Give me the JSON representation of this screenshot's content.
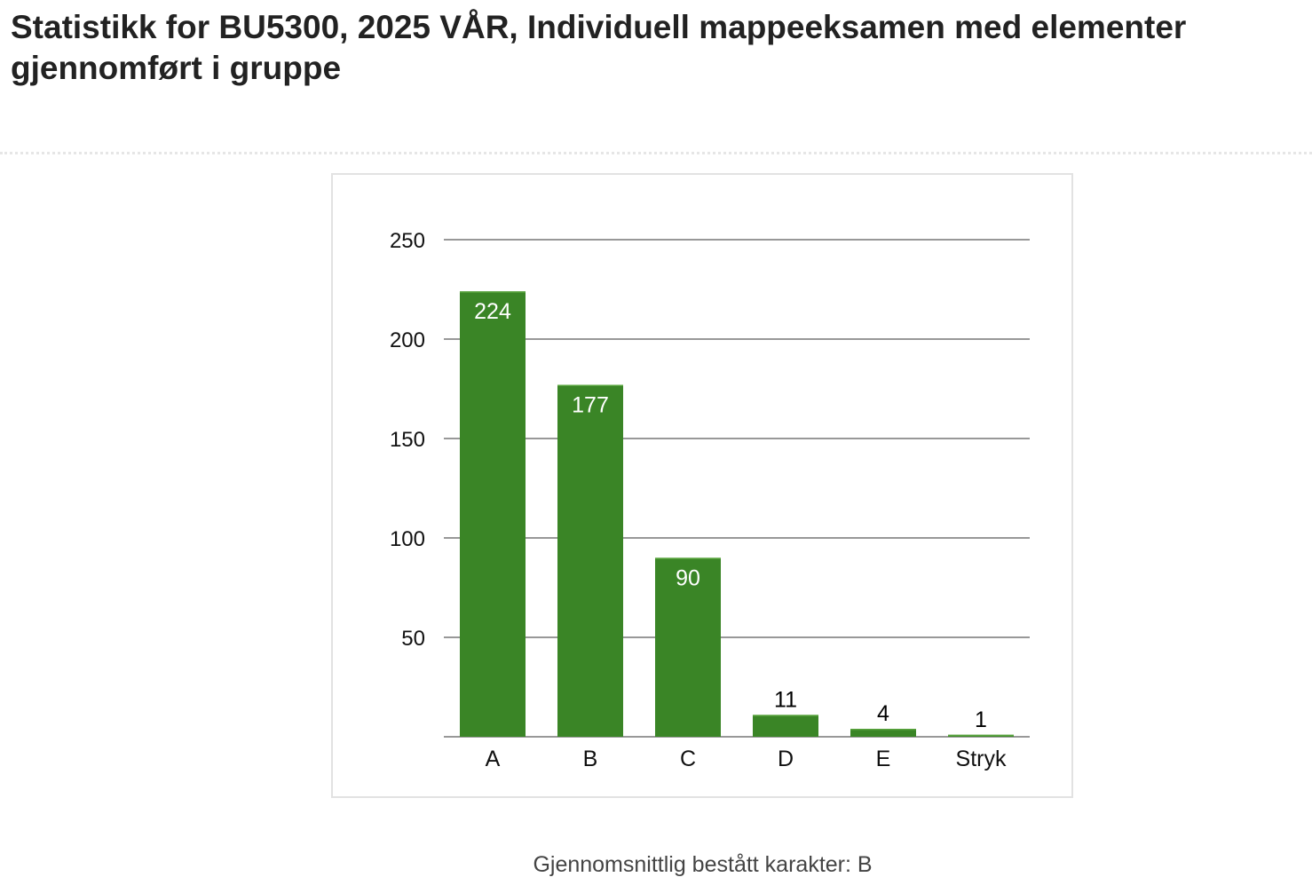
{
  "page": {
    "title": "Statistikk for BU5300, 2025 VÅR, Individuell mappeeksamen med elementer gjennomført i gruppe",
    "footer": "Gjennomsnittlig bestått karakter: B"
  },
  "colors": {
    "bar": "#3a8526",
    "bar_highlight": "#58a43d",
    "grid": "#777777",
    "label_inside": "#ffffff",
    "label_outside": "#000000"
  },
  "chart_data": {
    "type": "bar",
    "title": "",
    "xlabel": "",
    "ylabel": "",
    "categories": [
      "A",
      "B",
      "C",
      "D",
      "E",
      "Stryk"
    ],
    "values": [
      224,
      177,
      90,
      11,
      4,
      1
    ],
    "y_ticks": [
      50,
      100,
      150,
      200,
      250
    ],
    "ylim": [
      0,
      250
    ],
    "grid": true,
    "data_labels": true
  }
}
